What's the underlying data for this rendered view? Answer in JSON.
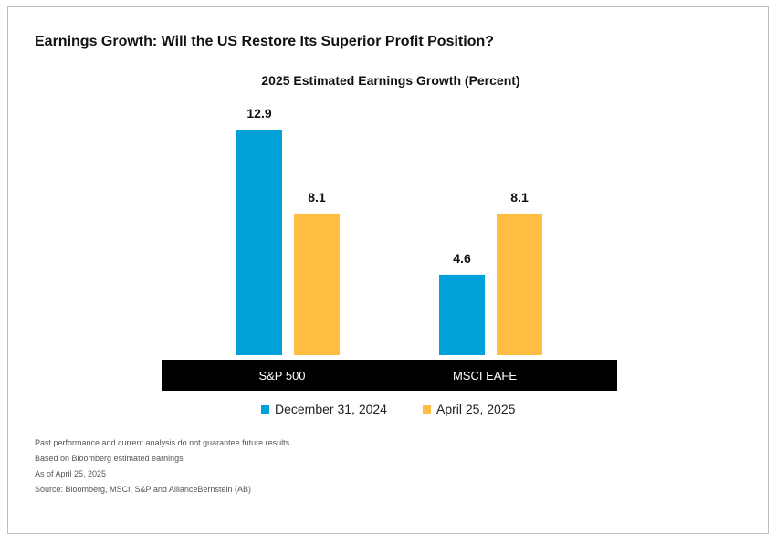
{
  "title": "Earnings Growth: Will the US Restore Its Superior Profit Position?",
  "chart_data": {
    "type": "bar",
    "title": "2025 Estimated Earnings Growth  (Percent)",
    "categories": [
      "S&P 500",
      "MSCI EAFE"
    ],
    "series": [
      {
        "name": "December 31, 2024",
        "values": [
          12.9,
          4.6
        ],
        "color": "#00A0D8"
      },
      {
        "name": "April 25, 2025",
        "values": [
          8.1,
          8.1
        ],
        "color": "#FFBE41"
      }
    ],
    "data_labels": [
      [
        "12.9",
        "4.6"
      ],
      [
        "8.1",
        "8.1"
      ]
    ],
    "ylim": [
      0,
      12.9
    ],
    "grid": false,
    "legend": "bottom-center",
    "category_band_color": "#000000"
  },
  "notes": [
    "Past performance and current analysis do not guarantee future results.",
    "Based on Bloomberg estimated earnings",
    "As of April 25, 2025",
    "Source: Bloomberg, MSCI, S&P and AllianceBernstein (AB)"
  ]
}
